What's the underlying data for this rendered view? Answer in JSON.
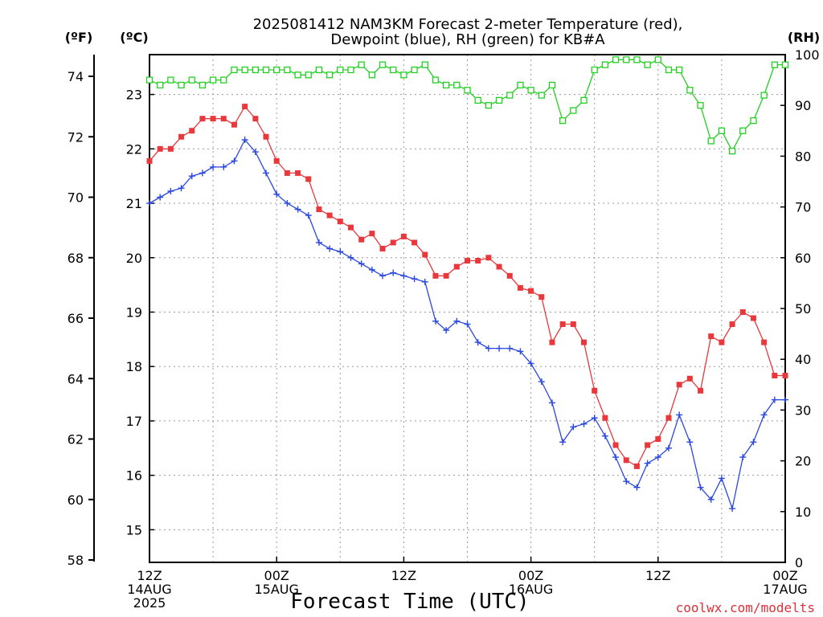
{
  "chart_data": {
    "type": "line",
    "title_line1": "2025081412 NAM3KM Forecast 2-meter Temperature (red),",
    "title_line2": "Dewpoint (blue), RH (green) for KB#A",
    "xlabel": "Forecast Time (UTC)",
    "credit": "coolwx.com/modelts",
    "units": {
      "left_f": "(ºF)",
      "left_c": "(ºC)",
      "right": "(RH)"
    },
    "x_ticks": [
      {
        "hour": 0,
        "lines": [
          "12Z",
          "14AUG",
          "2025"
        ]
      },
      {
        "hour": 12,
        "lines": [
          "00Z",
          "15AUG"
        ]
      },
      {
        "hour": 24,
        "lines": [
          "12Z"
        ]
      },
      {
        "hour": 36,
        "lines": [
          "00Z",
          "16AUG"
        ]
      },
      {
        "hour": 48,
        "lines": [
          "12Z"
        ]
      },
      {
        "hour": 60,
        "lines": [
          "00Z",
          "17AUG"
        ]
      }
    ],
    "xlim": [
      0,
      60
    ],
    "f_ticks": [
      58,
      60,
      62,
      64,
      66,
      68,
      70,
      72,
      74
    ],
    "c_ticks": [
      15,
      16,
      17,
      18,
      19,
      20,
      21,
      22,
      23
    ],
    "rh_ticks": [
      0,
      10,
      20,
      30,
      40,
      50,
      60,
      70,
      80,
      90,
      100
    ],
    "ylim_f": [
      58,
      74.8
    ],
    "ylim_rh": [
      0,
      100
    ],
    "grid": true,
    "colors": {
      "temperature": "#e8383c",
      "dewpoint": "#2a48e0",
      "rh": "#22d022"
    },
    "series": [
      {
        "key": "temperature",
        "unit": "F",
        "marker": "filled-square",
        "values": [
          [
            0,
            71.2
          ],
          [
            1,
            71.6
          ],
          [
            2,
            71.6
          ],
          [
            3,
            72.0
          ],
          [
            4,
            72.2
          ],
          [
            5,
            72.6
          ],
          [
            6,
            72.6
          ],
          [
            7,
            72.6
          ],
          [
            8,
            72.4
          ],
          [
            9,
            73.0
          ],
          [
            10,
            72.6
          ],
          [
            11,
            72.0
          ],
          [
            12,
            71.2
          ],
          [
            13,
            70.8
          ],
          [
            14,
            70.8
          ],
          [
            15,
            70.6
          ],
          [
            16,
            69.6
          ],
          [
            17,
            69.4
          ],
          [
            18,
            69.2
          ],
          [
            19,
            69.0
          ],
          [
            20,
            68.6
          ],
          [
            21,
            68.8
          ],
          [
            22,
            68.3
          ],
          [
            23,
            68.5
          ],
          [
            24,
            68.7
          ],
          [
            25,
            68.5
          ],
          [
            26,
            68.1
          ],
          [
            27,
            67.4
          ],
          [
            28,
            67.4
          ],
          [
            29,
            67.7
          ],
          [
            30,
            67.9
          ],
          [
            31,
            67.9
          ],
          [
            32,
            68.0
          ],
          [
            33,
            67.7
          ],
          [
            34,
            67.4
          ],
          [
            35,
            67.0
          ],
          [
            36,
            66.9
          ],
          [
            37,
            66.7
          ],
          [
            38,
            65.2
          ],
          [
            39,
            65.8
          ],
          [
            40,
            65.8
          ],
          [
            41,
            65.2
          ],
          [
            42,
            63.6
          ],
          [
            43,
            62.7
          ],
          [
            44,
            61.8
          ],
          [
            45,
            61.3
          ],
          [
            46,
            61.1
          ],
          [
            47,
            61.8
          ],
          [
            48,
            62.0
          ],
          [
            49,
            62.7
          ],
          [
            50,
            63.8
          ],
          [
            51,
            64.0
          ],
          [
            52,
            63.6
          ],
          [
            53,
            65.4
          ],
          [
            54,
            65.2
          ],
          [
            55,
            65.8
          ],
          [
            56,
            66.2
          ],
          [
            57,
            66.0
          ],
          [
            58,
            65.2
          ],
          [
            59,
            64.1
          ],
          [
            60,
            64.1
          ]
        ]
      },
      {
        "key": "dewpoint",
        "unit": "F",
        "marker": "plus",
        "values": [
          [
            0,
            69.8
          ],
          [
            1,
            70.0
          ],
          [
            2,
            70.2
          ],
          [
            3,
            70.3
          ],
          [
            4,
            70.7
          ],
          [
            5,
            70.8
          ],
          [
            6,
            71.0
          ],
          [
            7,
            71.0
          ],
          [
            8,
            71.2
          ],
          [
            9,
            71.9
          ],
          [
            10,
            71.5
          ],
          [
            11,
            70.8
          ],
          [
            12,
            70.1
          ],
          [
            13,
            69.8
          ],
          [
            14,
            69.6
          ],
          [
            15,
            69.4
          ],
          [
            16,
            68.5
          ],
          [
            17,
            68.3
          ],
          [
            18,
            68.2
          ],
          [
            19,
            68.0
          ],
          [
            20,
            67.8
          ],
          [
            21,
            67.6
          ],
          [
            22,
            67.4
          ],
          [
            23,
            67.5
          ],
          [
            24,
            67.4
          ],
          [
            25,
            67.3
          ],
          [
            26,
            67.2
          ],
          [
            27,
            65.9
          ],
          [
            28,
            65.6
          ],
          [
            29,
            65.9
          ],
          [
            30,
            65.8
          ],
          [
            31,
            65.2
          ],
          [
            32,
            65.0
          ],
          [
            33,
            65.0
          ],
          [
            34,
            65.0
          ],
          [
            35,
            64.9
          ],
          [
            36,
            64.5
          ],
          [
            37,
            63.9
          ],
          [
            38,
            63.2
          ],
          [
            39,
            61.9
          ],
          [
            40,
            62.4
          ],
          [
            41,
            62.5
          ],
          [
            42,
            62.7
          ],
          [
            43,
            62.1
          ],
          [
            44,
            61.4
          ],
          [
            45,
            60.6
          ],
          [
            46,
            60.4
          ],
          [
            47,
            61.2
          ],
          [
            48,
            61.4
          ],
          [
            49,
            61.7
          ],
          [
            50,
            62.8
          ],
          [
            51,
            61.9
          ],
          [
            52,
            60.4
          ],
          [
            53,
            60.0
          ],
          [
            54,
            60.7
          ],
          [
            55,
            59.7
          ],
          [
            56,
            61.4
          ],
          [
            57,
            61.9
          ],
          [
            58,
            62.8
          ],
          [
            59,
            63.3
          ],
          [
            60,
            63.3
          ]
        ]
      },
      {
        "key": "rh",
        "unit": "%",
        "marker": "open-square",
        "values": [
          [
            0,
            95
          ],
          [
            1,
            94
          ],
          [
            2,
            95
          ],
          [
            3,
            94
          ],
          [
            4,
            95
          ],
          [
            5,
            94
          ],
          [
            6,
            95
          ],
          [
            7,
            95
          ],
          [
            8,
            97
          ],
          [
            9,
            97
          ],
          [
            10,
            97
          ],
          [
            11,
            97
          ],
          [
            12,
            97
          ],
          [
            13,
            97
          ],
          [
            14,
            96
          ],
          [
            15,
            96
          ],
          [
            16,
            97
          ],
          [
            17,
            96
          ],
          [
            18,
            97
          ],
          [
            19,
            97
          ],
          [
            20,
            98
          ],
          [
            21,
            96
          ],
          [
            22,
            98
          ],
          [
            23,
            97
          ],
          [
            24,
            96
          ],
          [
            25,
            97
          ],
          [
            26,
            98
          ],
          [
            27,
            95
          ],
          [
            28,
            94
          ],
          [
            29,
            94
          ],
          [
            30,
            93
          ],
          [
            31,
            91
          ],
          [
            32,
            90
          ],
          [
            33,
            91
          ],
          [
            34,
            92
          ],
          [
            35,
            94
          ],
          [
            36,
            93
          ],
          [
            37,
            92
          ],
          [
            38,
            94
          ],
          [
            39,
            87
          ],
          [
            40,
            89
          ],
          [
            41,
            91
          ],
          [
            42,
            97
          ],
          [
            43,
            98
          ],
          [
            44,
            99
          ],
          [
            45,
            99
          ],
          [
            46,
            99
          ],
          [
            47,
            98
          ],
          [
            48,
            99
          ],
          [
            49,
            97
          ],
          [
            50,
            97
          ],
          [
            51,
            93
          ],
          [
            52,
            90
          ],
          [
            53,
            83
          ],
          [
            54,
            85
          ],
          [
            55,
            81
          ],
          [
            56,
            85
          ],
          [
            57,
            87
          ],
          [
            58,
            92
          ],
          [
            59,
            98
          ],
          [
            60,
            98
          ]
        ]
      }
    ]
  }
}
